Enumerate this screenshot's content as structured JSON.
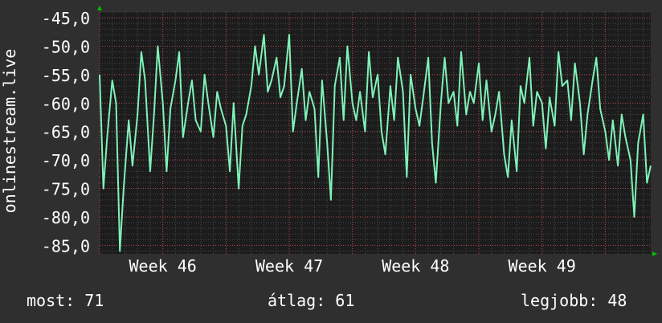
{
  "colors": {
    "background": "#2f2f2f",
    "plot_background": "#1c1c1c",
    "line": "#7ff2b8",
    "minor_grid": "#4a4a4a",
    "major_grid": "#b34a4a",
    "axis_arrow": "#00c000",
    "text": "#ffffff"
  },
  "chart_data": {
    "type": "line",
    "ylabel": "onlinestream.live",
    "ylim": [
      -86.5,
      -44.0
    ],
    "yticks": [
      -45,
      -50,
      -55,
      -60,
      -65,
      -70,
      -75,
      -80,
      -85
    ],
    "ytick_labels": [
      "-45,0",
      "-50,0",
      "-55,0",
      "-60,0",
      "-65,0",
      "-70,0",
      "-75,0",
      "-80,0",
      "-85,0"
    ],
    "xlim": [
      0,
      4.36
    ],
    "xticks": [
      0.5,
      1.5,
      2.5,
      3.5
    ],
    "xtick_labels": [
      "Week 46",
      "Week 47",
      "Week 48",
      "Week 49"
    ],
    "grid": true,
    "series": [
      {
        "x": [
          0.0,
          0.03,
          0.06,
          0.1,
          0.13,
          0.16,
          0.19,
          0.23,
          0.26,
          0.3,
          0.33,
          0.36,
          0.4,
          0.43,
          0.46,
          0.5,
          0.53,
          0.56,
          0.6,
          0.63,
          0.66,
          0.7,
          0.73,
          0.76,
          0.8,
          0.83,
          0.86,
          0.9,
          0.93,
          0.96,
          1.0,
          1.03,
          1.06,
          1.1,
          1.13,
          1.16,
          1.2,
          1.23,
          1.26,
          1.3,
          1.33,
          1.36,
          1.4,
          1.43,
          1.46,
          1.5,
          1.53,
          1.56,
          1.6,
          1.63,
          1.66,
          1.7,
          1.73,
          1.76,
          1.8,
          1.83,
          1.86,
          1.9,
          1.93,
          1.96,
          2.0,
          2.03,
          2.06,
          2.1,
          2.13,
          2.16,
          2.2,
          2.23,
          2.26,
          2.3,
          2.33,
          2.36,
          2.4,
          2.43,
          2.46,
          2.5,
          2.53,
          2.56,
          2.6,
          2.63,
          2.66,
          2.7,
          2.73,
          2.76,
          2.8,
          2.83,
          2.86,
          2.9,
          2.93,
          2.96,
          3.0,
          3.03,
          3.06,
          3.1,
          3.13,
          3.16,
          3.2,
          3.23,
          3.26,
          3.3,
          3.33,
          3.36,
          3.4,
          3.43,
          3.46,
          3.5,
          3.53,
          3.56,
          3.6,
          3.63,
          3.66,
          3.7,
          3.73,
          3.76,
          3.8,
          3.83,
          3.86,
          3.9,
          3.93,
          3.96,
          4.0,
          4.03,
          4.06,
          4.1,
          4.13,
          4.16,
          4.2,
          4.23,
          4.26,
          4.3,
          4.33,
          4.36
        ],
        "values": [
          -55,
          -75,
          -66,
          -56,
          -60,
          -86,
          -75,
          -63,
          -71,
          -62,
          -51,
          -56,
          -72,
          -62,
          -50,
          -60,
          -72,
          -61,
          -56,
          -51,
          -66,
          -60,
          -56,
          -63,
          -65,
          -55,
          -60,
          -66,
          -58,
          -61,
          -64,
          -72,
          -60,
          -75,
          -64,
          -62,
          -57,
          -50,
          -55,
          -48,
          -58,
          -56,
          -52,
          -59,
          -57,
          -48,
          -65,
          -60,
          -54,
          -63,
          -58,
          -61,
          -73,
          -56,
          -67,
          -77,
          -57,
          -52,
          -63,
          -50,
          -60,
          -63,
          -58,
          -65,
          -51,
          -59,
          -55,
          -65,
          -69,
          -57,
          -63,
          -52,
          -58,
          -73,
          -55,
          -61,
          -64,
          -59,
          -52,
          -67,
          -74,
          -60,
          -52,
          -60,
          -58,
          -64,
          -51,
          -62,
          -58,
          -60,
          -53,
          -63,
          -56,
          -65,
          -62,
          -58,
          -69,
          -73,
          -63,
          -72,
          -57,
          -60,
          -52,
          -64,
          -58,
          -60,
          -68,
          -59,
          -64,
          -51,
          -57,
          -56,
          -63,
          -53,
          -60,
          -69,
          -62,
          -56,
          -52,
          -61,
          -65,
          -70,
          -63,
          -71,
          -62,
          -66,
          -70,
          -80,
          -67,
          -62,
          -74,
          -71
        ]
      }
    ]
  },
  "footer": {
    "now": "most: 71",
    "avg": "átlag: 61",
    "best": "legjobb: 48"
  }
}
